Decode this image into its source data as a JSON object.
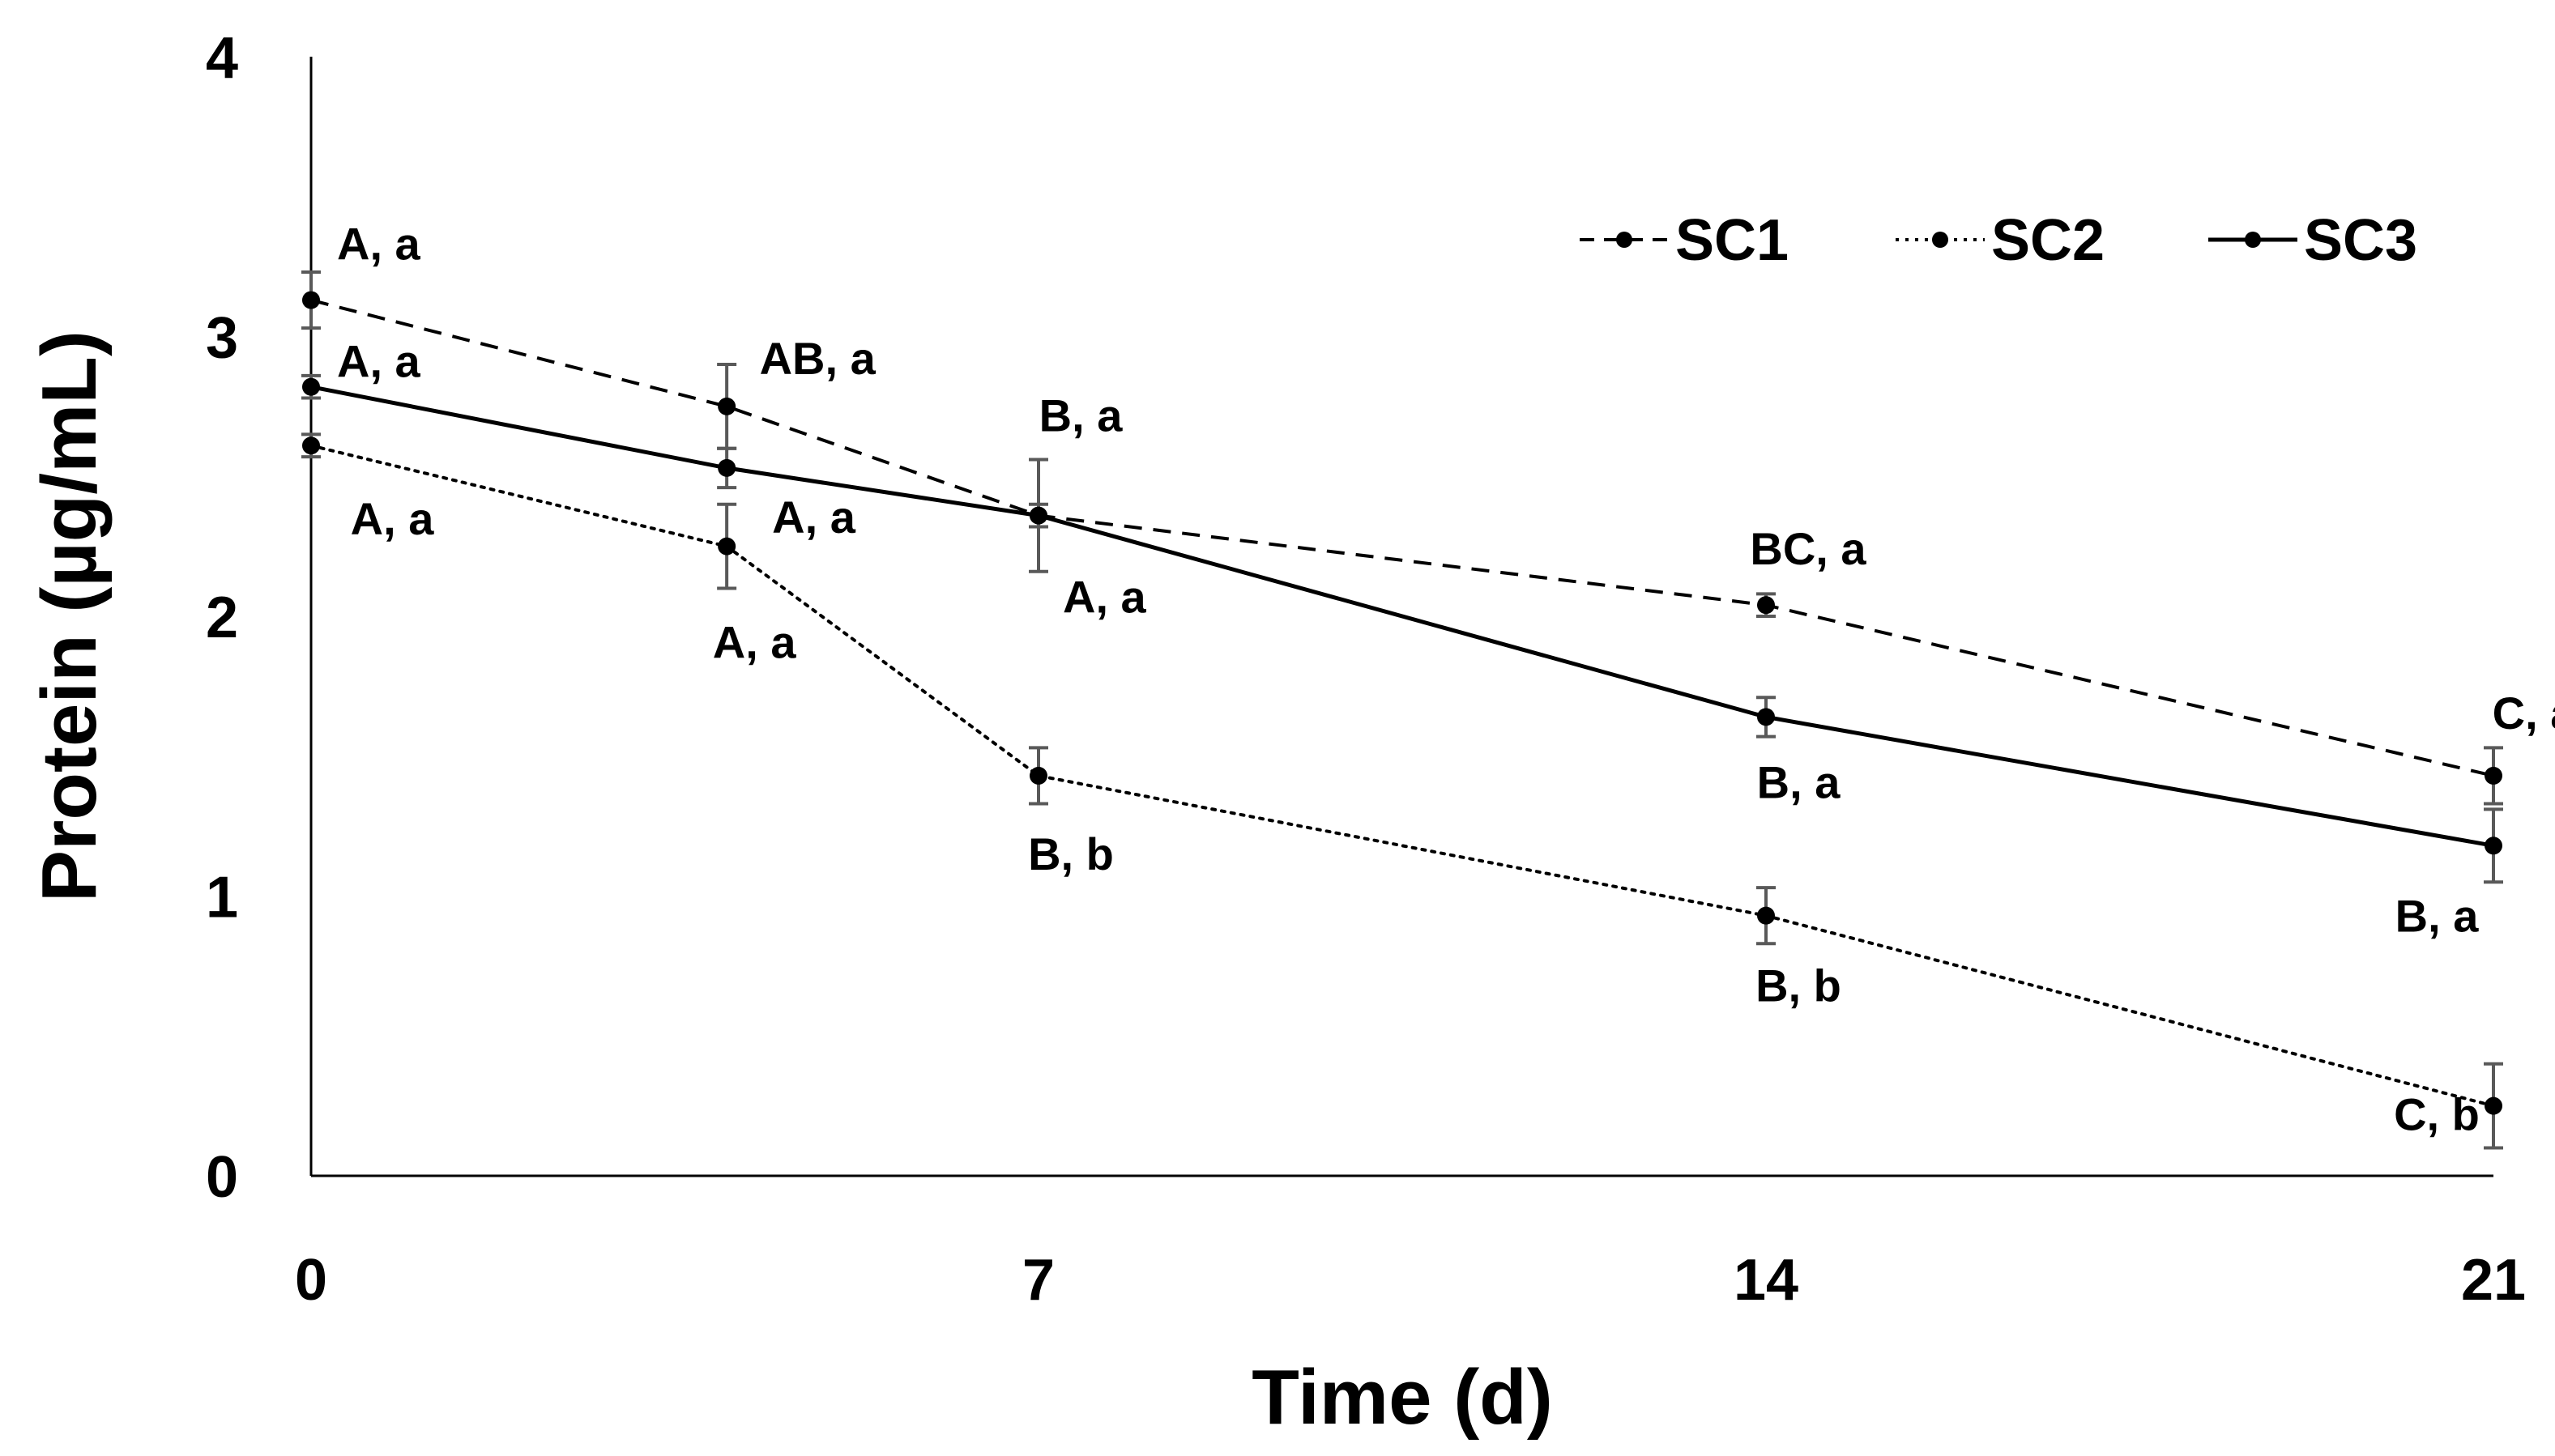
{
  "chart_data": {
    "type": "line",
    "title": "",
    "xlabel": "Time (d)",
    "ylabel": "Protein (µg/mL)",
    "xlim": [
      0,
      21
    ],
    "ylim": [
      0,
      4
    ],
    "xticks": [
      "0",
      "7",
      "14",
      "21"
    ],
    "yticks": [
      "0",
      "1",
      "2",
      "3",
      "4"
    ],
    "grid": false,
    "legend_position": "top-right",
    "series": [
      {
        "name": "SC1",
        "style": "dashed",
        "x": [
          0,
          4,
          7,
          14,
          21
        ],
        "y": [
          3.13,
          2.75,
          2.36,
          2.04,
          1.43
        ],
        "err": [
          0.1,
          0.15,
          0.2,
          0.04,
          0.1
        ],
        "labels": [
          "A, a",
          "AB, a",
          "B, a",
          "BC, a",
          "C, a"
        ]
      },
      {
        "name": "SC2",
        "style": "dotted",
        "x": [
          0,
          4,
          7,
          14,
          21
        ],
        "y": [
          2.61,
          2.25,
          1.43,
          0.93,
          0.25
        ],
        "err": [
          0.04,
          0.15,
          0.1,
          0.1,
          0.15
        ],
        "labels": [
          "A, a",
          "A, a",
          "B, b",
          "B, b",
          "C, b"
        ]
      },
      {
        "name": "SC3",
        "style": "solid",
        "x": [
          0,
          4,
          7,
          14,
          21
        ],
        "y": [
          2.82,
          2.53,
          2.36,
          1.64,
          1.18
        ],
        "err": [
          0.04,
          0.07,
          0.04,
          0.07,
          0.13
        ],
        "labels": [
          "A, a",
          "A, a",
          "A, a",
          "B, a",
          "B, a"
        ]
      }
    ],
    "colors": {
      "line": "#000000",
      "errorbar": "#595959",
      "background": "#ffffff"
    }
  }
}
